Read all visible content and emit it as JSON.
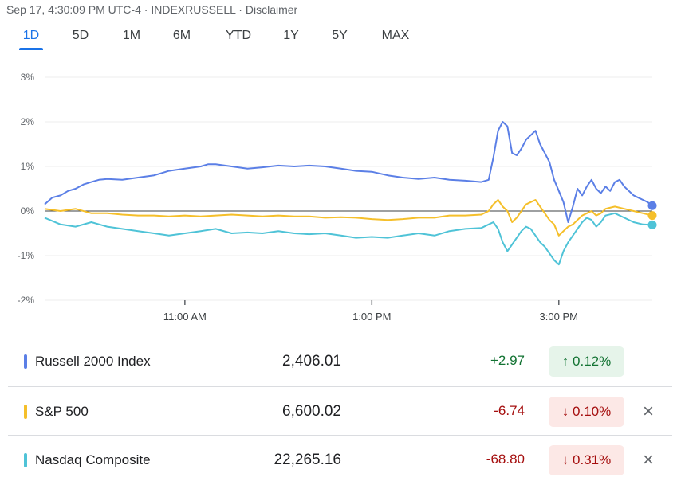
{
  "header": {
    "timestamp": "Sep 17, 4:30:09 PM UTC-4",
    "sep1": " · ",
    "index": "INDEXRUSSELL",
    "sep2": " · ",
    "disclaimer": "Disclaimer"
  },
  "tabs": [
    "1D",
    "5D",
    "1M",
    "6M",
    "YTD",
    "1Y",
    "5Y",
    "MAX"
  ],
  "active_tab": "1D",
  "colors": {
    "russell": "#5b7fe6",
    "sp500": "#f5bf2a",
    "nasdaq": "#4fc3d7",
    "up_text": "#137333",
    "down_text": "#a50e0e"
  },
  "legend": [
    {
      "name": "Russell 2000 Index",
      "price": "2,406.01",
      "change": "+2.97",
      "pct": "0.12%",
      "arrow": "↑",
      "direction": "up",
      "color": "#5b7fe6",
      "removable": false
    },
    {
      "name": "S&P 500",
      "price": "6,600.02",
      "change": "-6.74",
      "pct": "0.10%",
      "arrow": "↓",
      "direction": "down",
      "color": "#f5bf2a",
      "removable": true
    },
    {
      "name": "Nasdaq Composite",
      "price": "22,265.16",
      "change": "-68.80",
      "pct": "0.31%",
      "arrow": "↓",
      "direction": "down",
      "color": "#4fc3d7",
      "removable": true
    }
  ],
  "close_icon": "×",
  "chart_data": {
    "type": "line",
    "title": "",
    "xlabel": "",
    "ylabel": "",
    "x_unit": "hours (ET)",
    "xlim": [
      9.5,
      16.0
    ],
    "ylim": [
      -2,
      3
    ],
    "y_ticks": [
      3,
      2,
      1,
      0,
      -1,
      -2
    ],
    "y_tick_labels": [
      "3%",
      "2%",
      "1%",
      "0%",
      "-1%",
      "-2%"
    ],
    "x_ticks": [
      11,
      13,
      15
    ],
    "x_tick_labels": [
      "11:00 AM",
      "1:00 PM",
      "3:00 PM"
    ],
    "grid": true,
    "baseline": 0,
    "series": [
      {
        "name": "Russell 2000 Index",
        "color": "#5b7fe6",
        "points": [
          [
            9.5,
            0.15
          ],
          [
            9.58,
            0.3
          ],
          [
            9.67,
            0.35
          ],
          [
            9.75,
            0.45
          ],
          [
            9.83,
            0.5
          ],
          [
            9.92,
            0.6
          ],
          [
            10.0,
            0.65
          ],
          [
            10.08,
            0.7
          ],
          [
            10.17,
            0.72
          ],
          [
            10.33,
            0.7
          ],
          [
            10.5,
            0.75
          ],
          [
            10.67,
            0.8
          ],
          [
            10.75,
            0.85
          ],
          [
            10.83,
            0.9
          ],
          [
            11.0,
            0.95
          ],
          [
            11.17,
            1.0
          ],
          [
            11.25,
            1.05
          ],
          [
            11.33,
            1.05
          ],
          [
            11.5,
            1.0
          ],
          [
            11.67,
            0.95
          ],
          [
            11.83,
            0.98
          ],
          [
            12.0,
            1.02
          ],
          [
            12.17,
            1.0
          ],
          [
            12.33,
            1.02
          ],
          [
            12.5,
            1.0
          ],
          [
            12.67,
            0.95
          ],
          [
            12.83,
            0.9
          ],
          [
            13.0,
            0.88
          ],
          [
            13.17,
            0.8
          ],
          [
            13.33,
            0.75
          ],
          [
            13.5,
            0.72
          ],
          [
            13.67,
            0.75
          ],
          [
            13.83,
            0.7
          ],
          [
            14.0,
            0.68
          ],
          [
            14.17,
            0.65
          ],
          [
            14.25,
            0.7
          ],
          [
            14.3,
            1.2
          ],
          [
            14.35,
            1.8
          ],
          [
            14.4,
            2.0
          ],
          [
            14.45,
            1.9
          ],
          [
            14.5,
            1.3
          ],
          [
            14.55,
            1.25
          ],
          [
            14.6,
            1.4
          ],
          [
            14.65,
            1.6
          ],
          [
            14.7,
            1.7
          ],
          [
            14.75,
            1.8
          ],
          [
            14.8,
            1.5
          ],
          [
            14.85,
            1.3
          ],
          [
            14.9,
            1.1
          ],
          [
            14.95,
            0.7
          ],
          [
            15.0,
            0.45
          ],
          [
            15.05,
            0.2
          ],
          [
            15.1,
            -0.25
          ],
          [
            15.15,
            0.1
          ],
          [
            15.2,
            0.5
          ],
          [
            15.25,
            0.35
          ],
          [
            15.3,
            0.55
          ],
          [
            15.35,
            0.7
          ],
          [
            15.4,
            0.5
          ],
          [
            15.45,
            0.4
          ],
          [
            15.5,
            0.55
          ],
          [
            15.55,
            0.45
          ],
          [
            15.6,
            0.65
          ],
          [
            15.65,
            0.7
          ],
          [
            15.7,
            0.55
          ],
          [
            15.75,
            0.45
          ],
          [
            15.8,
            0.35
          ],
          [
            15.85,
            0.3
          ],
          [
            15.9,
            0.25
          ],
          [
            15.95,
            0.2
          ],
          [
            16.0,
            0.12
          ]
        ]
      },
      {
        "name": "S&P 500",
        "color": "#f5bf2a",
        "points": [
          [
            9.5,
            0.05
          ],
          [
            9.67,
            0.0
          ],
          [
            9.83,
            0.05
          ],
          [
            10.0,
            -0.05
          ],
          [
            10.17,
            -0.05
          ],
          [
            10.33,
            -0.08
          ],
          [
            10.5,
            -0.1
          ],
          [
            10.67,
            -0.1
          ],
          [
            10.83,
            -0.12
          ],
          [
            11.0,
            -0.1
          ],
          [
            11.17,
            -0.12
          ],
          [
            11.33,
            -0.1
          ],
          [
            11.5,
            -0.08
          ],
          [
            11.67,
            -0.1
          ],
          [
            11.83,
            -0.12
          ],
          [
            12.0,
            -0.1
          ],
          [
            12.17,
            -0.12
          ],
          [
            12.33,
            -0.12
          ],
          [
            12.5,
            -0.15
          ],
          [
            12.67,
            -0.14
          ],
          [
            12.83,
            -0.15
          ],
          [
            13.0,
            -0.18
          ],
          [
            13.17,
            -0.2
          ],
          [
            13.33,
            -0.18
          ],
          [
            13.5,
            -0.15
          ],
          [
            13.67,
            -0.15
          ],
          [
            13.83,
            -0.1
          ],
          [
            14.0,
            -0.1
          ],
          [
            14.17,
            -0.08
          ],
          [
            14.25,
            0.0
          ],
          [
            14.3,
            0.15
          ],
          [
            14.35,
            0.25
          ],
          [
            14.4,
            0.1
          ],
          [
            14.45,
            0.0
          ],
          [
            14.5,
            -0.25
          ],
          [
            14.55,
            -0.15
          ],
          [
            14.6,
            0.0
          ],
          [
            14.65,
            0.15
          ],
          [
            14.7,
            0.2
          ],
          [
            14.75,
            0.25
          ],
          [
            14.8,
            0.1
          ],
          [
            14.85,
            -0.05
          ],
          [
            14.9,
            -0.2
          ],
          [
            14.95,
            -0.3
          ],
          [
            15.0,
            -0.55
          ],
          [
            15.05,
            -0.45
          ],
          [
            15.1,
            -0.35
          ],
          [
            15.15,
            -0.3
          ],
          [
            15.2,
            -0.2
          ],
          [
            15.25,
            -0.1
          ],
          [
            15.3,
            -0.05
          ],
          [
            15.35,
            0.0
          ],
          [
            15.4,
            -0.1
          ],
          [
            15.45,
            -0.05
          ],
          [
            15.5,
            0.05
          ],
          [
            15.6,
            0.1
          ],
          [
            15.7,
            0.05
          ],
          [
            15.8,
            0.0
          ],
          [
            15.9,
            -0.05
          ],
          [
            16.0,
            -0.1
          ]
        ]
      },
      {
        "name": "Nasdaq Composite",
        "color": "#4fc3d7",
        "points": [
          [
            9.5,
            -0.15
          ],
          [
            9.67,
            -0.3
          ],
          [
            9.83,
            -0.35
          ],
          [
            10.0,
            -0.25
          ],
          [
            10.17,
            -0.35
          ],
          [
            10.33,
            -0.4
          ],
          [
            10.5,
            -0.45
          ],
          [
            10.67,
            -0.5
          ],
          [
            10.83,
            -0.55
          ],
          [
            11.0,
            -0.5
          ],
          [
            11.17,
            -0.45
          ],
          [
            11.33,
            -0.4
          ],
          [
            11.5,
            -0.5
          ],
          [
            11.67,
            -0.48
          ],
          [
            11.83,
            -0.5
          ],
          [
            12.0,
            -0.45
          ],
          [
            12.17,
            -0.5
          ],
          [
            12.33,
            -0.52
          ],
          [
            12.5,
            -0.5
          ],
          [
            12.67,
            -0.55
          ],
          [
            12.83,
            -0.6
          ],
          [
            13.0,
            -0.58
          ],
          [
            13.17,
            -0.6
          ],
          [
            13.33,
            -0.55
          ],
          [
            13.5,
            -0.5
          ],
          [
            13.67,
            -0.55
          ],
          [
            13.83,
            -0.45
          ],
          [
            14.0,
            -0.4
          ],
          [
            14.17,
            -0.38
          ],
          [
            14.25,
            -0.3
          ],
          [
            14.3,
            -0.25
          ],
          [
            14.35,
            -0.4
          ],
          [
            14.4,
            -0.7
          ],
          [
            14.45,
            -0.9
          ],
          [
            14.5,
            -0.75
          ],
          [
            14.55,
            -0.6
          ],
          [
            14.6,
            -0.45
          ],
          [
            14.65,
            -0.35
          ],
          [
            14.7,
            -0.4
          ],
          [
            14.75,
            -0.55
          ],
          [
            14.8,
            -0.7
          ],
          [
            14.85,
            -0.8
          ],
          [
            14.9,
            -0.95
          ],
          [
            14.95,
            -1.1
          ],
          [
            15.0,
            -1.2
          ],
          [
            15.05,
            -0.9
          ],
          [
            15.1,
            -0.7
          ],
          [
            15.15,
            -0.55
          ],
          [
            15.2,
            -0.4
          ],
          [
            15.25,
            -0.25
          ],
          [
            15.3,
            -0.15
          ],
          [
            15.35,
            -0.2
          ],
          [
            15.4,
            -0.35
          ],
          [
            15.45,
            -0.25
          ],
          [
            15.5,
            -0.1
          ],
          [
            15.6,
            -0.05
          ],
          [
            15.7,
            -0.15
          ],
          [
            15.8,
            -0.25
          ],
          [
            15.9,
            -0.3
          ],
          [
            16.0,
            -0.31
          ]
        ]
      }
    ]
  }
}
